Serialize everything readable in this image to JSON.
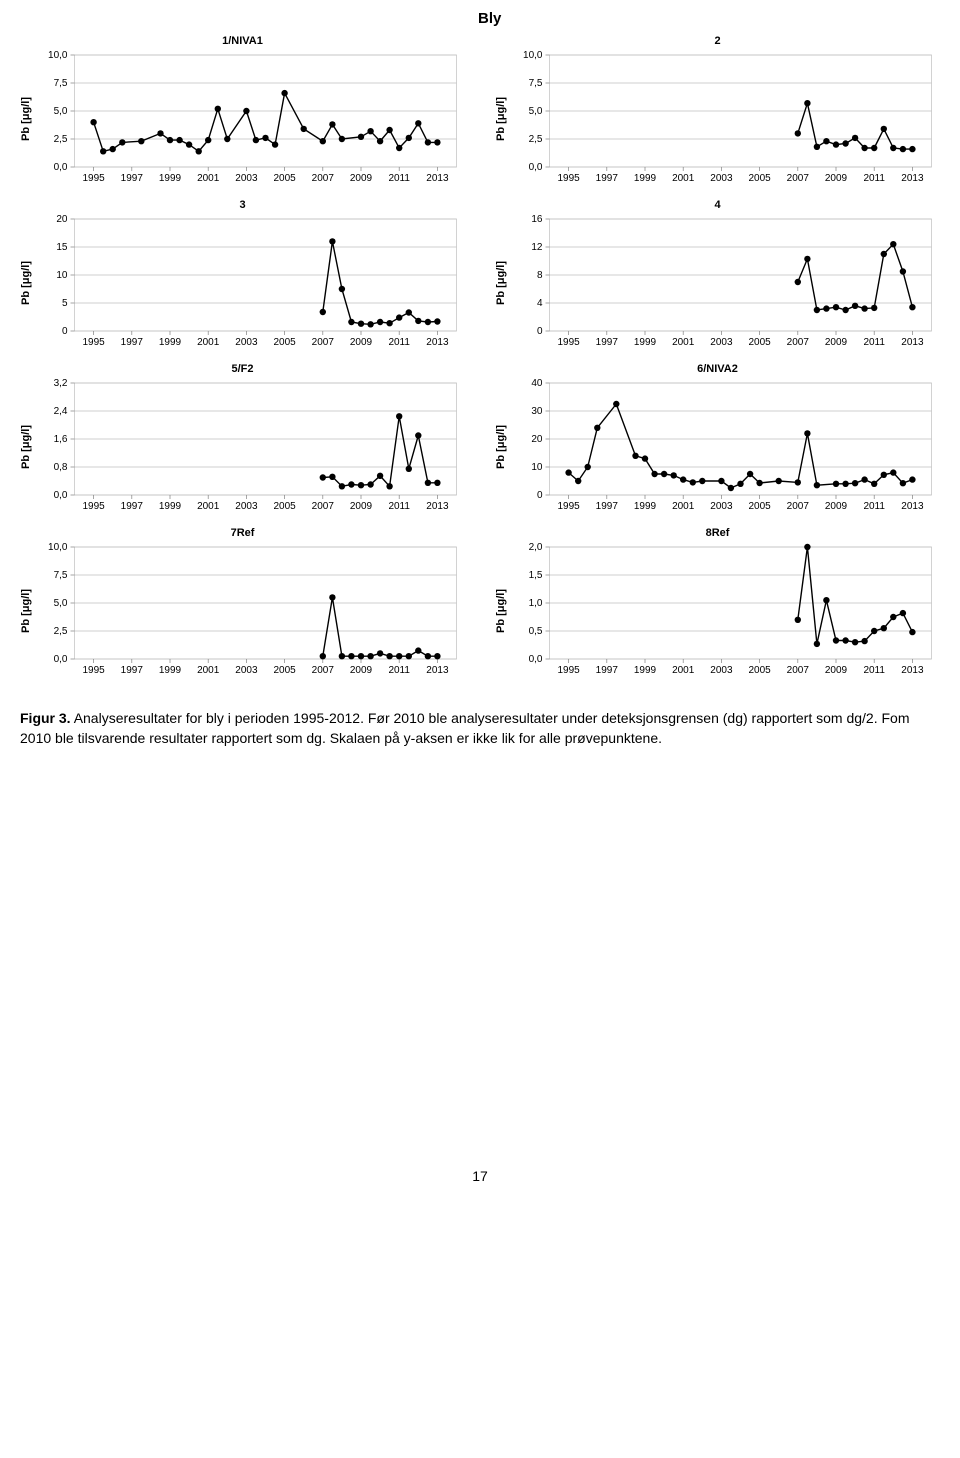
{
  "page_title": "Bly",
  "caption_html": "Figur 3. Analyseresultater for bly i perioden 1995-2012. Før 2010 ble analyseresultater under deteksjonsgrensen (dg) rapportert som dg/2. Fom 2010 ble tilsvarende resultater rapportert som dg. Skalaen på y-aksen er ikke lik for alle prøvepunktene.",
  "pagenum": "17",
  "common": {
    "ylabel": "Pb [μg/l]",
    "xlim": [
      1994,
      2014
    ],
    "xticks": [
      1995,
      1997,
      1999,
      2001,
      2003,
      2005,
      2007,
      2009,
      2011,
      2013
    ],
    "tick_fontsize": 10,
    "title_fontsize": 11,
    "marker_size": 3.2,
    "line_width": 1.4,
    "line_color": "#000000",
    "grid_color": "#bfbfbf",
    "axis_color": "#808080",
    "background_color": "#ffffff",
    "tickmark_color": "#808080",
    "decimal_comma": true
  },
  "charts": [
    {
      "title": "1/NIVA1",
      "ylim": [
        0,
        10
      ],
      "yticks": [
        0,
        2.5,
        5,
        7.5,
        10
      ],
      "ydec": 1,
      "x": [
        1995,
        1995.5,
        1996,
        1996.5,
        1997.5,
        1998.5,
        1999,
        1999.5,
        2000,
        2000.5,
        2001,
        2001.5,
        2002,
        2003,
        2003.5,
        2004,
        2004.5,
        2005,
        2006,
        2007,
        2007.5,
        2008,
        2009,
        2009.5,
        2010,
        2010.5,
        2011,
        2011.5,
        2012,
        2012.5,
        2013
      ],
      "y": [
        4.0,
        1.4,
        1.6,
        2.2,
        2.3,
        3.0,
        2.4,
        2.4,
        2.0,
        1.4,
        2.4,
        5.2,
        2.5,
        5.0,
        2.4,
        2.6,
        2.0,
        6.6,
        3.4,
        2.3,
        3.8,
        2.5,
        2.7,
        3.2,
        2.3,
        3.3,
        1.7,
        2.6,
        3.9,
        2.2,
        2.2
      ]
    },
    {
      "title": "2",
      "ylim": [
        0,
        10
      ],
      "yticks": [
        0,
        2.5,
        5,
        7.5,
        10
      ],
      "ydec": 1,
      "x": [
        2007,
        2007.5,
        2008,
        2008.5,
        2009,
        2009.5,
        2010,
        2010.5,
        2011,
        2011.5,
        2012,
        2012.5,
        2013
      ],
      "y": [
        3.0,
        5.7,
        1.8,
        2.3,
        2.0,
        2.1,
        2.6,
        1.7,
        1.7,
        3.4,
        1.7,
        1.6,
        1.6
      ]
    },
    {
      "title": "3",
      "ylim": [
        0,
        20
      ],
      "yticks": [
        0,
        5,
        10,
        15,
        20
      ],
      "ydec": 0,
      "x": [
        2007,
        2007.5,
        2008,
        2008.5,
        2009,
        2009.5,
        2010,
        2010.5,
        2011,
        2011.5,
        2012,
        2012.5,
        2013
      ],
      "y": [
        3.4,
        16.0,
        7.5,
        1.6,
        1.3,
        1.2,
        1.6,
        1.4,
        2.4,
        3.3,
        1.8,
        1.6,
        1.7
      ]
    },
    {
      "title": "4",
      "ylim": [
        0,
        16
      ],
      "yticks": [
        0,
        4,
        8,
        12,
        16
      ],
      "ydec": 0,
      "x": [
        2007,
        2007.5,
        2008,
        2008.5,
        2009,
        2009.5,
        2010,
        2010.5,
        2011,
        2011.5,
        2012,
        2012.5,
        2013
      ],
      "y": [
        7.0,
        10.3,
        3.0,
        3.2,
        3.4,
        3.0,
        3.6,
        3.2,
        3.3,
        11.0,
        12.4,
        8.5,
        3.4
      ]
    },
    {
      "title": "5/F2",
      "ylim": [
        0,
        3.2
      ],
      "yticks": [
        0,
        0.8,
        1.6,
        2.4,
        3.2
      ],
      "ydec": 1,
      "x": [
        2007,
        2007.5,
        2008,
        2008.5,
        2009,
        2009.5,
        2010,
        2010.5,
        2011,
        2011.5,
        2012,
        2012.5,
        2013
      ],
      "y": [
        0.5,
        0.52,
        0.25,
        0.3,
        0.28,
        0.3,
        0.55,
        0.25,
        2.25,
        0.75,
        1.7,
        0.35,
        0.35
      ]
    },
    {
      "title": "6/NIVA2",
      "ylim": [
        0,
        40
      ],
      "yticks": [
        0,
        10,
        20,
        30,
        40
      ],
      "ydec": 0,
      "x": [
        1995,
        1995.5,
        1996,
        1996.5,
        1997.5,
        1998.5,
        1999,
        1999.5,
        2000,
        2000.5,
        2001,
        2001.5,
        2002,
        2003,
        2003.5,
        2004,
        2004.5,
        2005,
        2006,
        2007,
        2007.5,
        2008,
        2009,
        2009.5,
        2010,
        2010.5,
        2011,
        2011.5,
        2012,
        2012.5,
        2013
      ],
      "y": [
        8.0,
        5.0,
        10.0,
        24.0,
        32.5,
        14.0,
        13.0,
        7.5,
        7.5,
        7.0,
        5.5,
        4.5,
        5.0,
        5.0,
        2.5,
        4.0,
        7.5,
        4.3,
        5.0,
        4.5,
        22.0,
        3.5,
        4.0,
        4.0,
        4.2,
        5.5,
        4.0,
        7.2,
        8.0,
        4.2,
        5.5
      ]
    },
    {
      "title": "7Ref",
      "ylim": [
        0,
        10
      ],
      "yticks": [
        0,
        2.5,
        5,
        7.5,
        10
      ],
      "ydec": 1,
      "x": [
        2007,
        2007.5,
        2008,
        2008.5,
        2009,
        2009.5,
        2010,
        2010.5,
        2011,
        2011.5,
        2012,
        2012.5,
        2013
      ],
      "y": [
        0.25,
        5.5,
        0.25,
        0.25,
        0.25,
        0.25,
        0.5,
        0.25,
        0.25,
        0.25,
        0.75,
        0.25,
        0.25
      ]
    },
    {
      "title": "8Ref",
      "ylim": [
        0,
        2
      ],
      "yticks": [
        0,
        0.5,
        1,
        1.5,
        2
      ],
      "ydec": 1,
      "x": [
        2007,
        2007.5,
        2008,
        2008.5,
        2009,
        2009.5,
        2010,
        2010.5,
        2011,
        2011.5,
        2012,
        2012.5,
        2013
      ],
      "y": [
        0.7,
        2.0,
        0.27,
        1.05,
        0.33,
        0.33,
        0.3,
        0.32,
        0.5,
        0.55,
        0.75,
        0.82,
        0.48
      ]
    }
  ]
}
